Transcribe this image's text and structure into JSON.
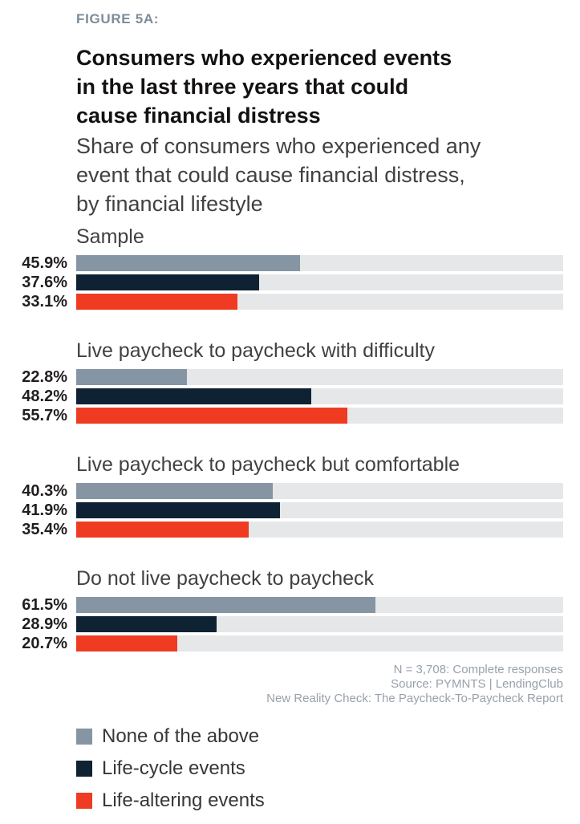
{
  "figure_label": "FIGURE 5A:",
  "header": {
    "title_lines": [
      "Consumers who experienced events",
      "in the last three years that could",
      "cause financial distress"
    ],
    "subtitle_lines": [
      "Share of consumers who experienced any",
      "event that could cause financial distress,",
      "by financial lifestyle"
    ]
  },
  "chart_data": {
    "type": "bar",
    "orientation": "horizontal",
    "value_unit": "percent",
    "axis_range": [
      0,
      100
    ],
    "grid": false,
    "legend_position": "bottom-left",
    "track_color": "#e6e7e8",
    "colors": [
      "#8695a4",
      "#0e2233",
      "#ee3b22"
    ],
    "series_names": [
      "None of the above",
      "Life-cycle events",
      "Life-altering events"
    ],
    "groups": [
      {
        "label": "Sample",
        "values": [
          45.9,
          37.6,
          33.1
        ],
        "display": [
          "45.9%",
          "37.6%",
          "33.1%"
        ]
      },
      {
        "label": "Live paycheck to paycheck with difficulty",
        "values": [
          22.8,
          48.2,
          55.7
        ],
        "display": [
          "22.8%",
          "48.2%",
          "55.7%"
        ]
      },
      {
        "label": "Live paycheck to paycheck but comfortable",
        "values": [
          40.3,
          41.9,
          35.4
        ],
        "display": [
          "40.3%",
          "41.9%",
          "35.4%"
        ]
      },
      {
        "label": "Do not live paycheck to paycheck",
        "values": [
          61.5,
          28.9,
          20.7
        ],
        "display": [
          "61.5%",
          "28.9%",
          "20.7%"
        ]
      }
    ]
  },
  "source": {
    "lines": [
      "N = 3,708: Complete responses",
      "Source: PYMNTS  |  LendingClub",
      "New Reality Check: The Paycheck-To-Paycheck Report"
    ]
  },
  "legend": {
    "items": [
      {
        "label": "None of the above",
        "color": "#8695a4"
      },
      {
        "label": "Life-cycle events",
        "color": "#0e2233"
      },
      {
        "label": "Life-altering events",
        "color": "#ee3b22"
      }
    ]
  }
}
